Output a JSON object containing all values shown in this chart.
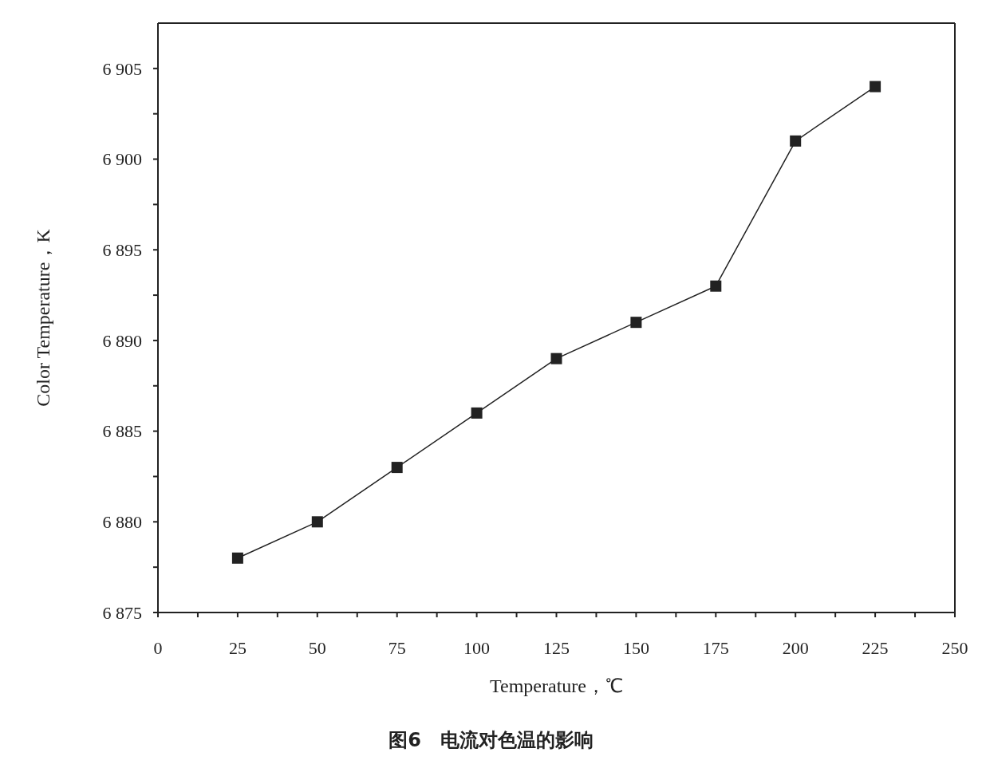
{
  "chart_data": {
    "type": "line",
    "xlabel": "Temperature，℃",
    "ylabel": "Color Temperature，K",
    "x": [
      25,
      50,
      75,
      100,
      125,
      150,
      175,
      200,
      225
    ],
    "series": [
      {
        "color": "#222222",
        "values": [
          6878,
          6880,
          6883,
          6886,
          6889,
          6891,
          6893,
          6901,
          6904
        ]
      }
    ],
    "xlim": [
      0,
      250
    ],
    "xticks": [
      0,
      {
        "value": 12.5,
        "label": null
      },
      25,
      {
        "value": 37.5,
        "label": null
      },
      50,
      {
        "value": 62.5,
        "label": null
      },
      75,
      {
        "value": 87.5,
        "label": null
      },
      100,
      {
        "value": 112.5,
        "label": null
      },
      125,
      {
        "value": 137.5,
        "label": null
      },
      150,
      {
        "value": 162.5,
        "label": null
      },
      175,
      {
        "value": 187.5,
        "label": null
      },
      200,
      {
        "value": 212.5,
        "label": null
      },
      225,
      {
        "value": 237.5,
        "label": null
      },
      250
    ],
    "ylim": [
      6875,
      6907.5
    ],
    "yticks": [
      {
        "value": 6875,
        "label": "6 875"
      },
      {
        "value": 6877.5,
        "label": null
      },
      {
        "value": 6880,
        "label": "6 880"
      },
      {
        "value": 6882.5,
        "label": null
      },
      {
        "value": 6885,
        "label": "6 885"
      },
      {
        "value": 6887.5,
        "label": null
      },
      {
        "value": 6890,
        "label": "6 890"
      },
      {
        "value": 6892.5,
        "label": null
      },
      {
        "value": 6895,
        "label": "6 895"
      },
      {
        "value": 6897.5,
        "label": null
      },
      {
        "value": 6900,
        "label": "6 900"
      },
      {
        "value": 6902.5,
        "label": null
      },
      {
        "value": 6905,
        "label": "6 905"
      }
    ],
    "marker": "square",
    "line_style": "solid",
    "annotations": [
      "图6　电流对色温的影响"
    ]
  }
}
